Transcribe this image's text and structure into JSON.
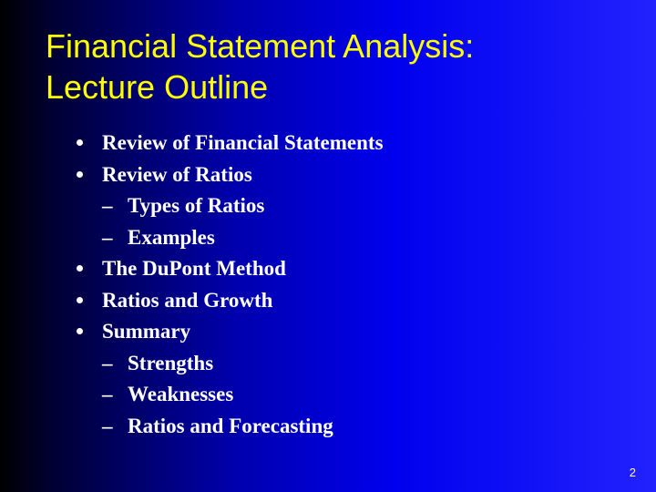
{
  "slide": {
    "title_line1": "Financial Statement Analysis:",
    "title_line2": "Lecture Outline",
    "title_color": "#ffff00",
    "text_color": "#ffffff",
    "background_gradient": [
      "#000000",
      "#000033",
      "#0000aa",
      "#0000ee",
      "#2222ff"
    ],
    "font_family_title": "Arial",
    "font_family_body": "Times New Roman",
    "title_fontsize": 36,
    "body_fontsize": 23,
    "bullets": [
      {
        "text": "Review of Financial Statements",
        "children": []
      },
      {
        "text": "Review of Ratios",
        "children": [
          {
            "text": "Types of Ratios"
          },
          {
            "text": "Examples"
          }
        ]
      },
      {
        "text": "The DuPont Method",
        "children": []
      },
      {
        "text": "Ratios and Growth",
        "children": []
      },
      {
        "text": "Summary",
        "children": [
          {
            "text": "Strengths"
          },
          {
            "text": "Weaknesses"
          },
          {
            "text": "Ratios and Forecasting"
          }
        ]
      }
    ],
    "page_number": "2"
  }
}
